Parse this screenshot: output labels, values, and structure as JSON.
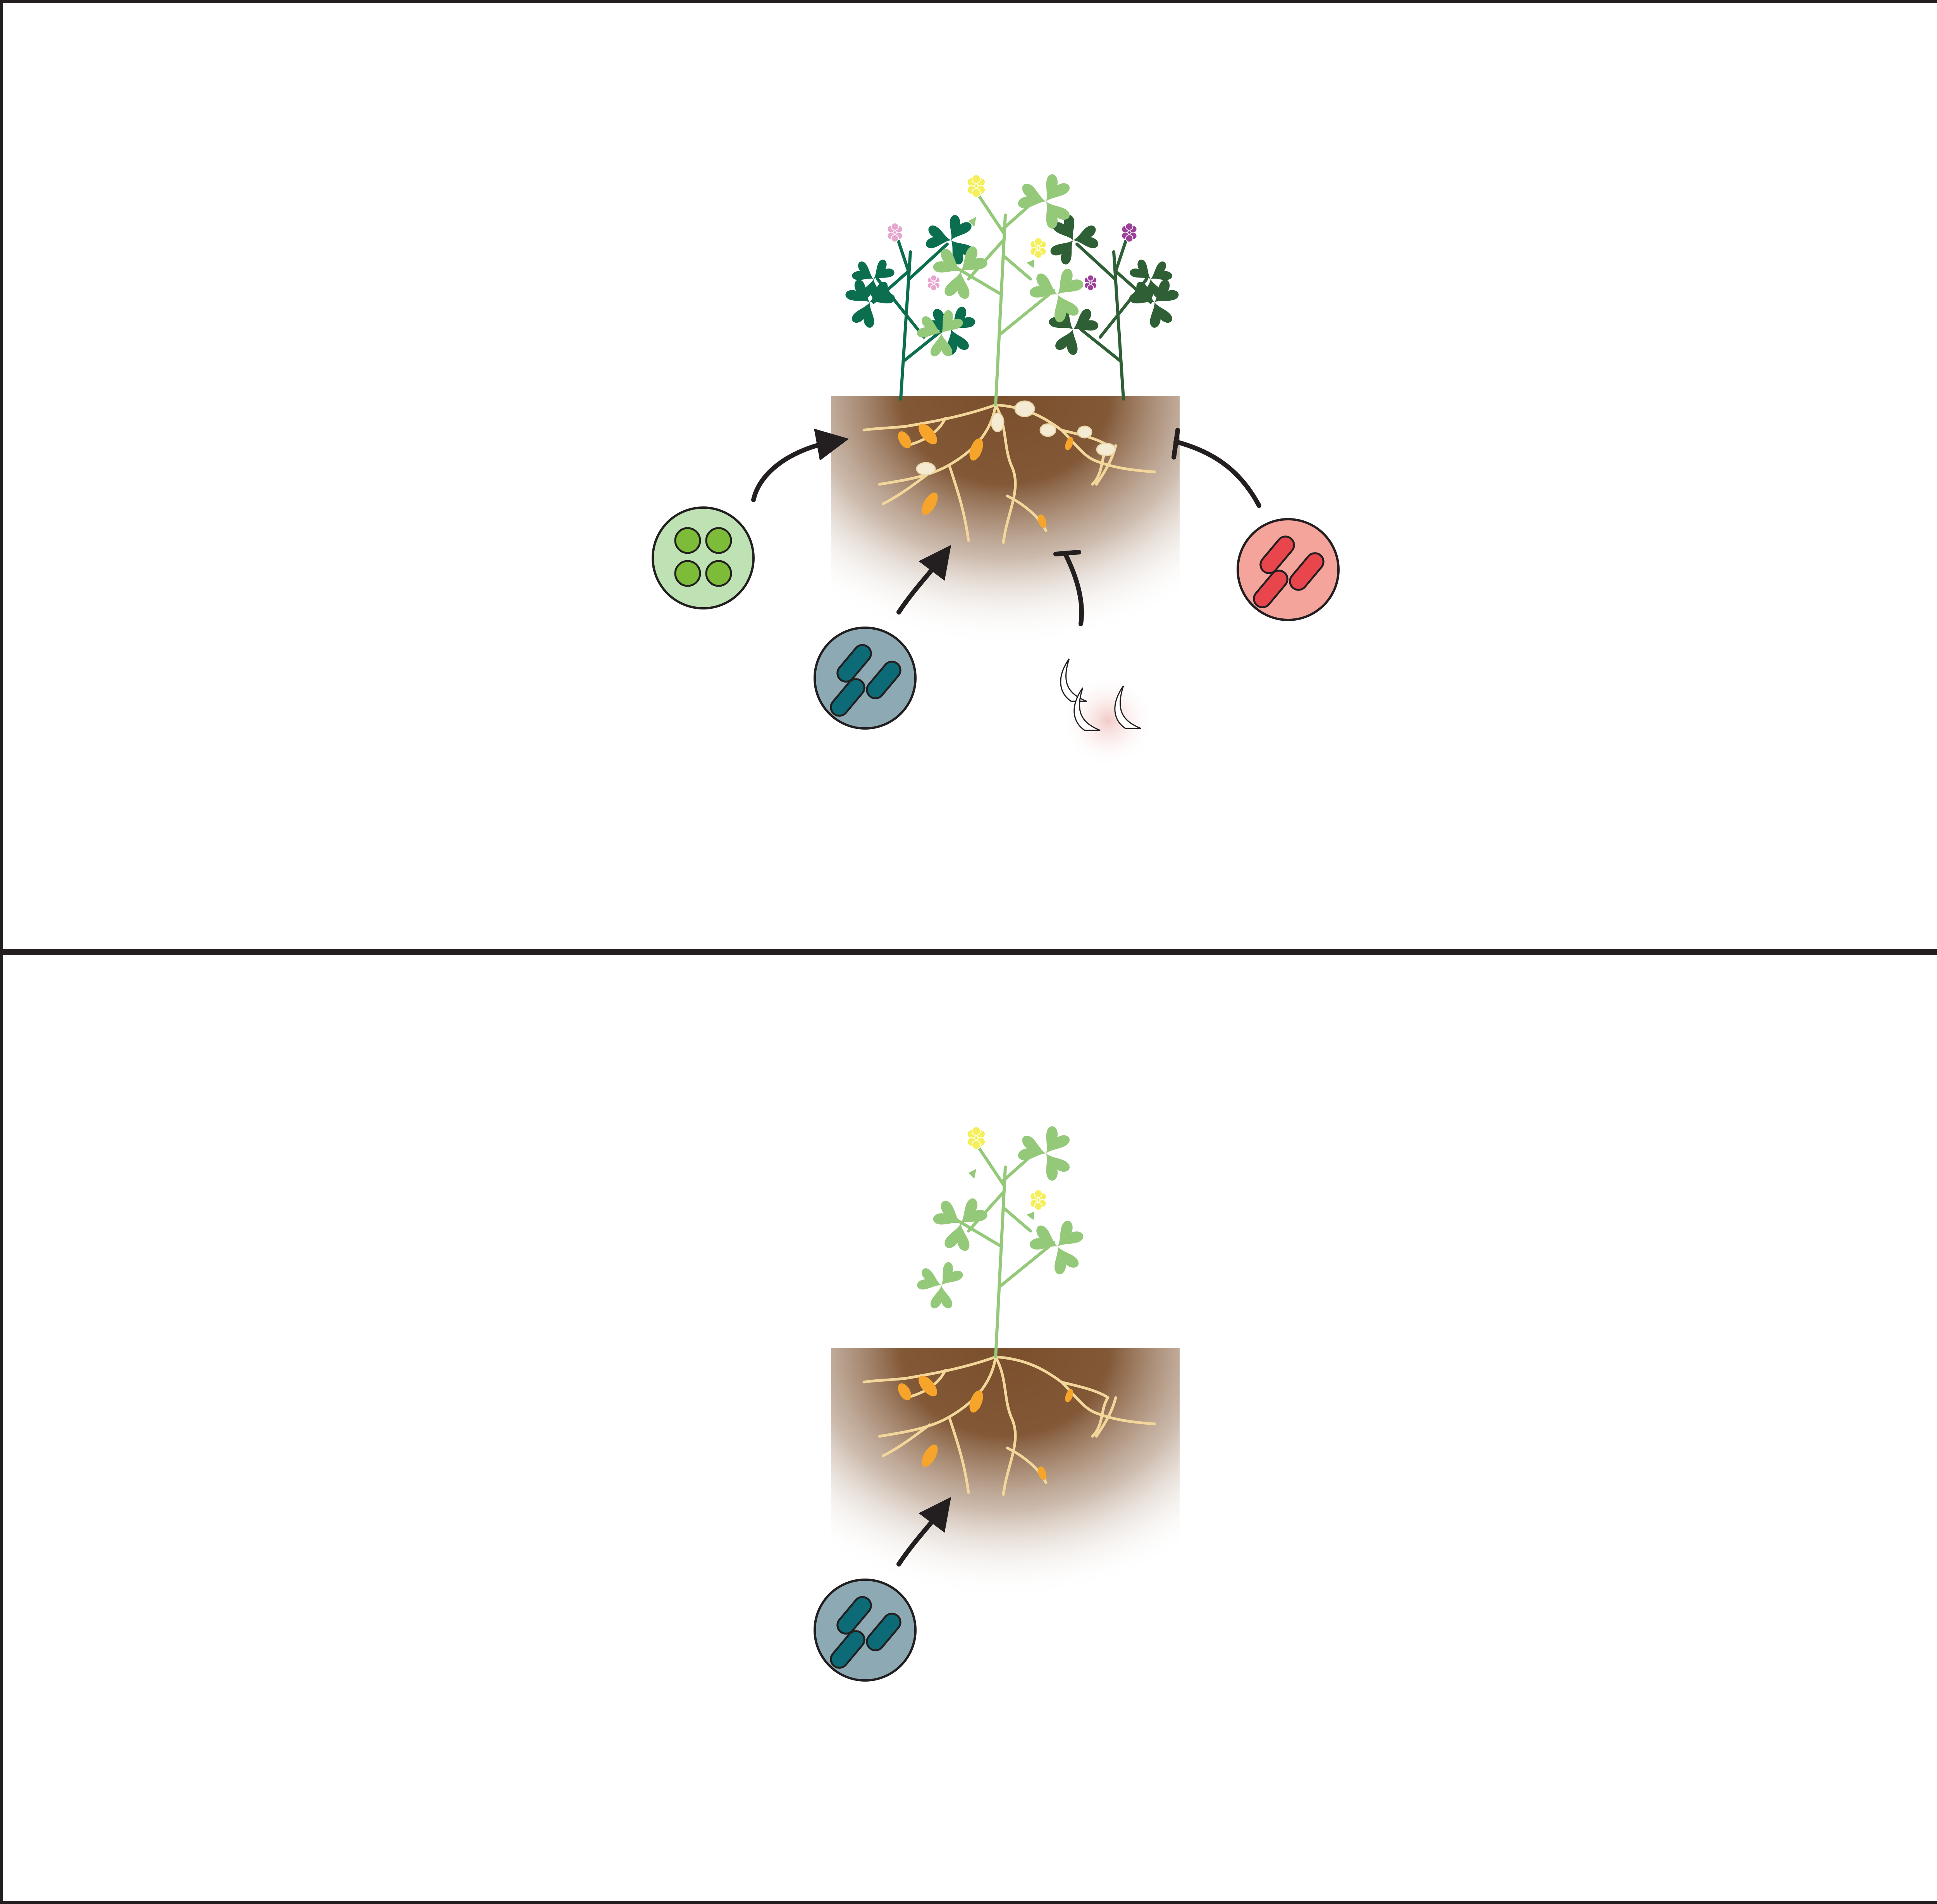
{
  "figure": {
    "panels": [
      {
        "id": "top",
        "plants": [
          "clover-dark-green",
          "medic-light-green",
          "clover-dark-olive"
        ],
        "influences": [
          {
            "organism": "cocci-bacteria",
            "effect": "promotes"
          },
          {
            "organism": "rod-bacteria-teal",
            "effect": "promotes"
          },
          {
            "organism": "nematodes",
            "effect": "inhibits"
          },
          {
            "organism": "rod-bacteria-red",
            "effect": "inhibits"
          }
        ]
      },
      {
        "id": "bottom",
        "plants": [
          "medic-light-green"
        ],
        "influences": [
          {
            "organism": "rod-bacteria-teal",
            "effect": "promotes"
          }
        ]
      }
    ]
  },
  "colors": {
    "border": "#231f20",
    "soil": "#7b4f2c",
    "root": "#f3d79a",
    "nodule": "#f6a42a",
    "bulb": "#f5ead2",
    "clover_dark": "#0b6e4f",
    "clover_olive": "#2f5f35",
    "medic": "#94c97a",
    "flower_yellow": "#f4ef5a",
    "flower_pink": "#e7a6cf",
    "flower_purple": "#9b3f99",
    "cocci_bg": "#bfe2b4",
    "cocci": "#7cbc38",
    "rod_teal_bg": "#8daab4",
    "rod_teal": "#0d6b78",
    "rod_red_bg": "#f4a49a",
    "rod_red": "#e8454c"
  }
}
